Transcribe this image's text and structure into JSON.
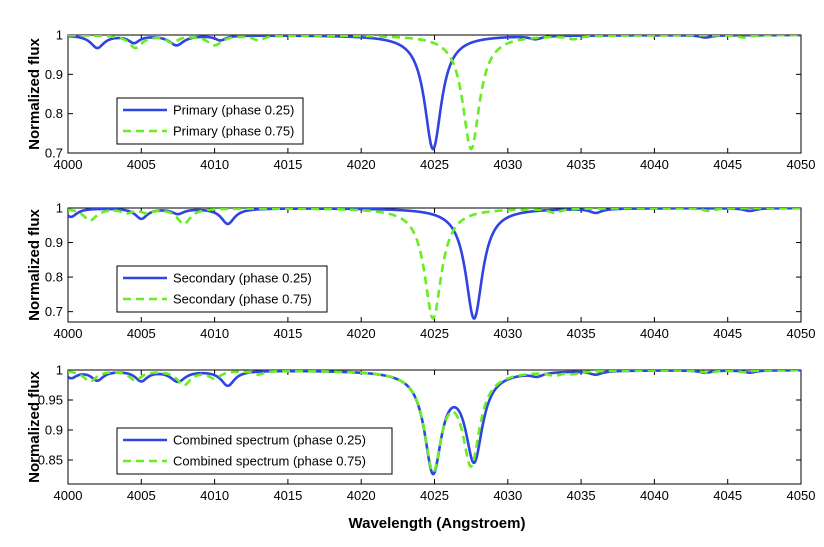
{
  "figure": {
    "xlabel": "Wavelength (Angstroem)"
  },
  "chart_data": [
    {
      "type": "line",
      "ylabel": "Normalized flux",
      "xlim": [
        4000,
        4050
      ],
      "ylim": [
        0.7,
        1.0
      ],
      "xticks": [
        4000,
        4005,
        4010,
        4015,
        4020,
        4025,
        4030,
        4035,
        4040,
        4045,
        4050
      ],
      "yticks": [
        0.7,
        0.8,
        0.9,
        1.0
      ],
      "ytick_labels": [
        "0.7",
        "0.8",
        "0.9",
        "1"
      ],
      "legend_position": "lower-left",
      "series": [
        {
          "name": "Primary (phase 0.25)",
          "color": "#2f44e0",
          "style": "solid",
          "lines": [
            {
              "center": 4024.9,
              "depth": 0.29,
              "width": 0.7
            },
            {
              "center": 4002.0,
              "depth": 0.032,
              "width": 0.55
            },
            {
              "center": 4004.5,
              "depth": 0.018,
              "width": 0.45
            },
            {
              "center": 4007.4,
              "depth": 0.025,
              "width": 0.6
            },
            {
              "center": 4010.4,
              "depth": 0.012,
              "width": 0.45
            },
            {
              "center": 4031.9,
              "depth": 0.008,
              "width": 0.5
            },
            {
              "center": 4043.5,
              "depth": 0.006,
              "width": 0.5
            }
          ]
        },
        {
          "name": "Primary (phase 0.75)",
          "color": "#66ee22",
          "style": "dashed",
          "lines": [
            {
              "center": 4027.5,
              "depth": 0.29,
              "width": 0.7
            },
            {
              "center": 4004.6,
              "depth": 0.032,
              "width": 0.55
            },
            {
              "center": 4007.1,
              "depth": 0.018,
              "width": 0.45
            },
            {
              "center": 4010.0,
              "depth": 0.025,
              "width": 0.6
            },
            {
              "center": 4013.0,
              "depth": 0.012,
              "width": 0.45
            },
            {
              "center": 4034.5,
              "depth": 0.008,
              "width": 0.5
            },
            {
              "center": 4046.1,
              "depth": 0.006,
              "width": 0.5
            }
          ]
        }
      ]
    },
    {
      "type": "line",
      "ylabel": "Normalized flux",
      "xlim": [
        4000,
        4050
      ],
      "ylim": [
        0.67,
        1.0
      ],
      "xticks": [
        4000,
        4005,
        4010,
        4015,
        4020,
        4025,
        4030,
        4035,
        4040,
        4045,
        4050
      ],
      "yticks": [
        0.7,
        0.8,
        0.9,
        1.0
      ],
      "ytick_labels": [
        "0.7",
        "0.8",
        "0.9",
        "1"
      ],
      "legend_position": "lower-left",
      "series": [
        {
          "name": "Secondary (phase 0.25)",
          "color": "#2f44e0",
          "style": "solid",
          "lines": [
            {
              "center": 4027.7,
              "depth": 0.32,
              "width": 0.7
            },
            {
              "center": 4000.2,
              "depth": 0.025,
              "width": 0.5
            },
            {
              "center": 4005.0,
              "depth": 0.03,
              "width": 0.5
            },
            {
              "center": 4007.5,
              "depth": 0.015,
              "width": 0.5
            },
            {
              "center": 4010.9,
              "depth": 0.045,
              "width": 0.55
            },
            {
              "center": 4036.0,
              "depth": 0.012,
              "width": 0.5
            },
            {
              "center": 4046.5,
              "depth": 0.008,
              "width": 0.5
            }
          ]
        },
        {
          "name": "Secondary (phase 0.75)",
          "color": "#66ee22",
          "style": "dashed",
          "lines": [
            {
              "center": 4024.9,
              "depth": 0.32,
              "width": 0.7
            },
            {
              "center": 4001.5,
              "depth": 0.035,
              "width": 0.55
            },
            {
              "center": 4004.0,
              "depth": 0.012,
              "width": 0.45
            },
            {
              "center": 4005.4,
              "depth": 0.012,
              "width": 0.45
            },
            {
              "center": 4007.9,
              "depth": 0.045,
              "width": 0.55
            },
            {
              "center": 4033.2,
              "depth": 0.012,
              "width": 0.5
            },
            {
              "center": 4043.7,
              "depth": 0.008,
              "width": 0.5
            }
          ]
        }
      ]
    },
    {
      "type": "line",
      "ylabel": "Normalized flux",
      "xlim": [
        4000,
        4050
      ],
      "ylim": [
        0.81,
        1.0
      ],
      "xticks": [
        4000,
        4005,
        4010,
        4015,
        4020,
        4025,
        4030,
        4035,
        4040,
        4045,
        4050
      ],
      "yticks": [
        0.85,
        0.9,
        0.95,
        1.0
      ],
      "ytick_labels": [
        "0.85",
        "0.9",
        "0.95",
        "1"
      ],
      "legend_position": "lower-left",
      "series": [
        {
          "name": "Combined spectrum (phase 0.25)",
          "color": "#2f44e0",
          "style": "solid",
          "lines": [
            {
              "center": 4024.9,
              "depth": 0.165,
              "width": 0.7
            },
            {
              "center": 4027.7,
              "depth": 0.145,
              "width": 0.7
            },
            {
              "center": 4000.2,
              "depth": 0.012,
              "width": 0.5
            },
            {
              "center": 4002.0,
              "depth": 0.016,
              "width": 0.5
            },
            {
              "center": 4005.0,
              "depth": 0.017,
              "width": 0.5
            },
            {
              "center": 4007.5,
              "depth": 0.018,
              "width": 0.6
            },
            {
              "center": 4010.9,
              "depth": 0.025,
              "width": 0.55
            },
            {
              "center": 4032.0,
              "depth": 0.006,
              "width": 0.5
            },
            {
              "center": 4036.0,
              "depth": 0.006,
              "width": 0.5
            },
            {
              "center": 4043.5,
              "depth": 0.004,
              "width": 0.5
            },
            {
              "center": 4046.5,
              "depth": 0.004,
              "width": 0.5
            }
          ]
        },
        {
          "name": "Combined spectrum (phase 0.75)",
          "color": "#66ee22",
          "style": "dashed",
          "lines": [
            {
              "center": 4024.9,
              "depth": 0.16,
              "width": 0.7
            },
            {
              "center": 4027.5,
              "depth": 0.15,
              "width": 0.7
            },
            {
              "center": 4001.5,
              "depth": 0.018,
              "width": 0.55
            },
            {
              "center": 4004.6,
              "depth": 0.016,
              "width": 0.5
            },
            {
              "center": 4007.9,
              "depth": 0.024,
              "width": 0.55
            },
            {
              "center": 4010.0,
              "depth": 0.012,
              "width": 0.5
            },
            {
              "center": 4013.0,
              "depth": 0.006,
              "width": 0.45
            },
            {
              "center": 4033.2,
              "depth": 0.006,
              "width": 0.5
            },
            {
              "center": 4034.5,
              "depth": 0.004,
              "width": 0.5
            },
            {
              "center": 4043.7,
              "depth": 0.004,
              "width": 0.5
            },
            {
              "center": 4046.1,
              "depth": 0.003,
              "width": 0.5
            }
          ]
        }
      ]
    }
  ]
}
